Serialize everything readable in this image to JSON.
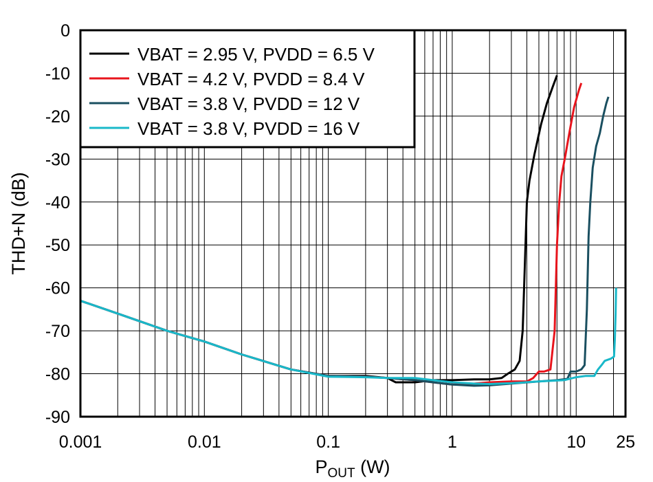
{
  "chart_data": {
    "type": "line",
    "xscale": "log",
    "xlim": [
      0.001,
      25
    ],
    "ylim": [
      -90,
      0
    ],
    "grid": true,
    "legend_position": "top-left",
    "ylabel": "THD+N (dB)",
    "xlabel": {
      "main": "P",
      "sub": "OUT",
      "unit": " (W)"
    },
    "xticks": [
      {
        "value": 0.001,
        "label": "0.001"
      },
      {
        "value": 0.01,
        "label": "0.01"
      },
      {
        "value": 0.1,
        "label": "0.1"
      },
      {
        "value": 1,
        "label": "1"
      },
      {
        "value": 10,
        "label": "10"
      },
      {
        "value": 25,
        "label": "25"
      }
    ],
    "yticks": [
      {
        "value": 0,
        "label": "0"
      },
      {
        "value": -10,
        "label": "-10"
      },
      {
        "value": -20,
        "label": "-20"
      },
      {
        "value": -30,
        "label": "-30"
      },
      {
        "value": -40,
        "label": "-40"
      },
      {
        "value": -50,
        "label": "-50"
      },
      {
        "value": -60,
        "label": "-60"
      },
      {
        "value": -70,
        "label": "-70"
      },
      {
        "value": -80,
        "label": "-80"
      },
      {
        "value": -90,
        "label": "-90"
      }
    ],
    "series": [
      {
        "name": "VBAT = 2.95 V, PVDD = 6.5 V",
        "color": "#000000",
        "points": [
          [
            0.001,
            -63
          ],
          [
            0.002,
            -66
          ],
          [
            0.005,
            -70
          ],
          [
            0.01,
            -72.5
          ],
          [
            0.02,
            -75.5
          ],
          [
            0.05,
            -79
          ],
          [
            0.1,
            -80.5
          ],
          [
            0.2,
            -80.5
          ],
          [
            0.3,
            -81
          ],
          [
            0.35,
            -82
          ],
          [
            0.5,
            -82
          ],
          [
            0.7,
            -81.5
          ],
          [
            1,
            -81.5
          ],
          [
            1.5,
            -81.3
          ],
          [
            2,
            -81.3
          ],
          [
            2.5,
            -81
          ],
          [
            2.8,
            -80
          ],
          [
            3.2,
            -79
          ],
          [
            3.5,
            -77
          ],
          [
            3.7,
            -70
          ],
          [
            3.85,
            -55
          ],
          [
            4.0,
            -40
          ],
          [
            4.2,
            -35
          ],
          [
            4.6,
            -29
          ],
          [
            5.2,
            -22
          ],
          [
            5.8,
            -17
          ],
          [
            6.5,
            -13
          ],
          [
            7.0,
            -10.5
          ]
        ]
      },
      {
        "name": "VBAT = 4.2 V, PVDD = 8.4 V",
        "color": "#e8141c",
        "points": [
          [
            0.001,
            -63
          ],
          [
            0.002,
            -66
          ],
          [
            0.005,
            -70
          ],
          [
            0.01,
            -72.5
          ],
          [
            0.02,
            -75.5
          ],
          [
            0.05,
            -79
          ],
          [
            0.1,
            -80.5
          ],
          [
            0.2,
            -80.7
          ],
          [
            0.3,
            -81
          ],
          [
            0.5,
            -81.5
          ],
          [
            0.7,
            -82
          ],
          [
            1,
            -82.5
          ],
          [
            1.5,
            -82.3
          ],
          [
            2,
            -82
          ],
          [
            3,
            -81.8
          ],
          [
            4,
            -81.8
          ],
          [
            4.5,
            -81
          ],
          [
            5,
            -79.5
          ],
          [
            5.5,
            -79.5
          ],
          [
            6.2,
            -79
          ],
          [
            6.7,
            -70
          ],
          [
            7.0,
            -50
          ],
          [
            7.3,
            -40
          ],
          [
            7.6,
            -34
          ],
          [
            8.2,
            -29
          ],
          [
            8.8,
            -24
          ],
          [
            9.6,
            -18
          ],
          [
            10.5,
            -14
          ],
          [
            11.0,
            -12.3
          ]
        ]
      },
      {
        "name": "VBAT = 3.8 V, PVDD = 12 V",
        "color": "#1a4f60",
        "points": [
          [
            0.001,
            -63
          ],
          [
            0.002,
            -66
          ],
          [
            0.005,
            -70
          ],
          [
            0.01,
            -72.5
          ],
          [
            0.02,
            -75.5
          ],
          [
            0.05,
            -79
          ],
          [
            0.1,
            -80.5
          ],
          [
            0.2,
            -80.7
          ],
          [
            0.3,
            -81
          ],
          [
            0.5,
            -81.5
          ],
          [
            0.7,
            -82
          ],
          [
            1,
            -82.5
          ],
          [
            1.5,
            -82.8
          ],
          [
            2,
            -82.7
          ],
          [
            3,
            -82.3
          ],
          [
            5,
            -81.8
          ],
          [
            7,
            -81.5
          ],
          [
            8.5,
            -81.2
          ],
          [
            9,
            -79.5
          ],
          [
            10,
            -79.5
          ],
          [
            11,
            -79
          ],
          [
            11.7,
            -78
          ],
          [
            12.2,
            -65
          ],
          [
            12.6,
            -48
          ],
          [
            13,
            -40
          ],
          [
            13.6,
            -32
          ],
          [
            14.5,
            -27
          ],
          [
            15.5,
            -24
          ],
          [
            16.5,
            -20
          ],
          [
            17.5,
            -17
          ],
          [
            18.2,
            -15.5
          ]
        ]
      },
      {
        "name": "VBAT = 3.8 V, PVDD = 16 V",
        "color": "#19b8c9",
        "points": [
          [
            0.001,
            -63
          ],
          [
            0.002,
            -66
          ],
          [
            0.005,
            -70
          ],
          [
            0.01,
            -72.5
          ],
          [
            0.02,
            -75.5
          ],
          [
            0.05,
            -79
          ],
          [
            0.1,
            -80.7
          ],
          [
            0.2,
            -80.8
          ],
          [
            0.3,
            -81
          ],
          [
            0.5,
            -81
          ],
          [
            0.7,
            -81.5
          ],
          [
            1,
            -82
          ],
          [
            1.5,
            -82.3
          ],
          [
            2,
            -82.4
          ],
          [
            3,
            -82.2
          ],
          [
            5,
            -81.8
          ],
          [
            8,
            -81.5
          ],
          [
            10,
            -80.8
          ],
          [
            12,
            -80.5
          ],
          [
            14,
            -80.5
          ],
          [
            15,
            -79
          ],
          [
            16,
            -78
          ],
          [
            17,
            -77
          ],
          [
            19,
            -76.5
          ],
          [
            20.2,
            -76
          ],
          [
            20.5,
            -72
          ],
          [
            20.8,
            -66
          ],
          [
            21.0,
            -60
          ]
        ]
      }
    ]
  }
}
